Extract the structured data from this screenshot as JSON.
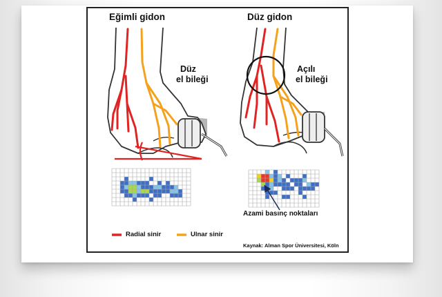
{
  "panels": {
    "left": {
      "title": "Eğimli gidon",
      "wrist_label_line1": "Düz",
      "wrist_label_line2": "el bileği"
    },
    "right": {
      "title": "Düz gidon",
      "wrist_label_line1": "Açılı",
      "wrist_label_line2": "el bileği"
    }
  },
  "legend": {
    "items": [
      {
        "label": "Radial sinir",
        "color": "#e02424"
      },
      {
        "label": "Ulnar sinir",
        "color": "#f4a21e"
      }
    ]
  },
  "pressure_callout": "Azami basınç noktaları",
  "source_prefix": "Kaynak:",
  "source_text": "Alman Spor Üniversitesi, Köln",
  "colors": {
    "skin_outline": "#333333",
    "handlebar_gray": "#b8b8b8",
    "grid_line": "#a8a8a8",
    "pressure_low": "#3f6fc4",
    "pressure_mid": "#86c3e6",
    "pressure_hi": "#a9d94a",
    "pressure_peak": "#e8382a",
    "pressure_warn": "#f5d01c"
  }
}
